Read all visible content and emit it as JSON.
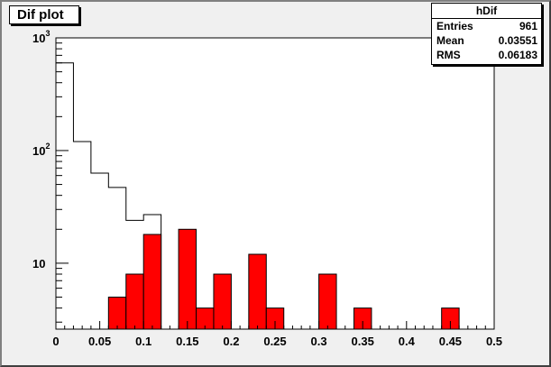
{
  "title": "Dif plot",
  "stats": {
    "name": "hDif",
    "rows": [
      {
        "label": "Entries",
        "value": "961"
      },
      {
        "label": "Mean",
        "value": "0.03551"
      },
      {
        "label": "RMS",
        "value": "0.06183"
      }
    ]
  },
  "chart_data": {
    "type": "bar",
    "title": "Dif plot",
    "xlabel": "",
    "ylabel": "",
    "xlim": [
      0,
      0.5
    ],
    "ylim": [
      2.6,
      1000
    ],
    "yscale": "log",
    "grid": false,
    "bin_width": 0.02,
    "x_ticks": [
      0,
      0.05,
      0.1,
      0.15,
      0.2,
      0.25,
      0.3,
      0.35,
      0.4,
      0.45,
      0.5
    ],
    "x_tick_labels": [
      "0",
      "0.05",
      "0.1",
      "0.15",
      "0.2",
      "0.25",
      "0.3",
      "0.35",
      "0.4",
      "0.45",
      "0.5"
    ],
    "y_tick_labels": [
      {
        "value": 1000,
        "base": "10",
        "exp": "3"
      },
      {
        "value": 100,
        "base": "10",
        "exp": "2"
      },
      {
        "value": 10,
        "base": "10",
        "exp": ""
      }
    ],
    "series": [
      {
        "style": "outline",
        "color": "#000000",
        "bins": [
          {
            "x": 0.0,
            "y": 600
          },
          {
            "x": 0.02,
            "y": 120
          },
          {
            "x": 0.04,
            "y": 63
          },
          {
            "x": 0.06,
            "y": 47
          },
          {
            "x": 0.08,
            "y": 24
          },
          {
            "x": 0.1,
            "y": 27
          }
        ]
      },
      {
        "style": "filled",
        "color": "#ff0000",
        "bins": [
          {
            "x": 0.06,
            "y": 5
          },
          {
            "x": 0.08,
            "y": 8
          },
          {
            "x": 0.1,
            "y": 18
          },
          {
            "x": 0.14,
            "y": 20
          },
          {
            "x": 0.16,
            "y": 4
          },
          {
            "x": 0.18,
            "y": 8
          },
          {
            "x": 0.22,
            "y": 12
          },
          {
            "x": 0.24,
            "y": 4
          },
          {
            "x": 0.3,
            "y": 8
          },
          {
            "x": 0.34,
            "y": 4
          },
          {
            "x": 0.44,
            "y": 4
          }
        ]
      }
    ]
  }
}
